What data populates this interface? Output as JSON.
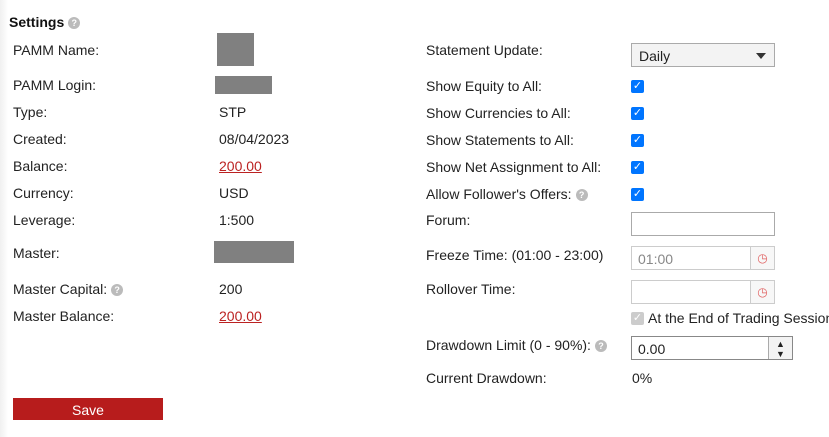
{
  "title": "Settings",
  "left": [
    {
      "label": "PAMM Name:",
      "value": null
    },
    {
      "label": "PAMM Login:",
      "value": null
    },
    {
      "label": "Type:",
      "value": "STP"
    },
    {
      "label": "Created:",
      "value": "08/04/2023"
    },
    {
      "label": "Balance:",
      "value": "200.00"
    },
    {
      "label": "Currency:",
      "value": "USD"
    },
    {
      "label": "Leverage:",
      "value": "1:500"
    },
    {
      "label": "Master:",
      "value": null
    },
    {
      "label": "Master Capital:",
      "value": "200"
    },
    {
      "label": "Master Balance:",
      "value": "200.00"
    }
  ],
  "right": {
    "statement_update": {
      "label": "Statement Update:",
      "value": "Daily"
    },
    "show_equity": {
      "label": "Show Equity to All:",
      "checked": true
    },
    "show_currencies": {
      "label": "Show Currencies to All:",
      "checked": true
    },
    "show_statements": {
      "label": "Show Statements to All:",
      "checked": true
    },
    "show_net": {
      "label": "Show Net Assignment to All:",
      "checked": true
    },
    "allow_offers": {
      "label": "Allow Follower's Offers:",
      "checked": true
    },
    "forum": {
      "label": "Forum:",
      "value": ""
    },
    "freeze": {
      "label": "Freeze Time: (01:00 - 23:00)",
      "value": "01:00"
    },
    "rollover": {
      "label": "Rollover Time:",
      "value": ""
    },
    "end_session": {
      "label": "At the End of Trading Session",
      "checked": true,
      "disabled": true
    },
    "drawdown_limit": {
      "label": "Drawdown Limit (0 - 90%):",
      "value": "0.00"
    },
    "current_drawdown": {
      "label": "Current Drawdown:",
      "value": "0%"
    }
  },
  "save_label": "Save",
  "colors": {
    "accent": "#b71c1c",
    "checkbox": "#0075ff"
  }
}
